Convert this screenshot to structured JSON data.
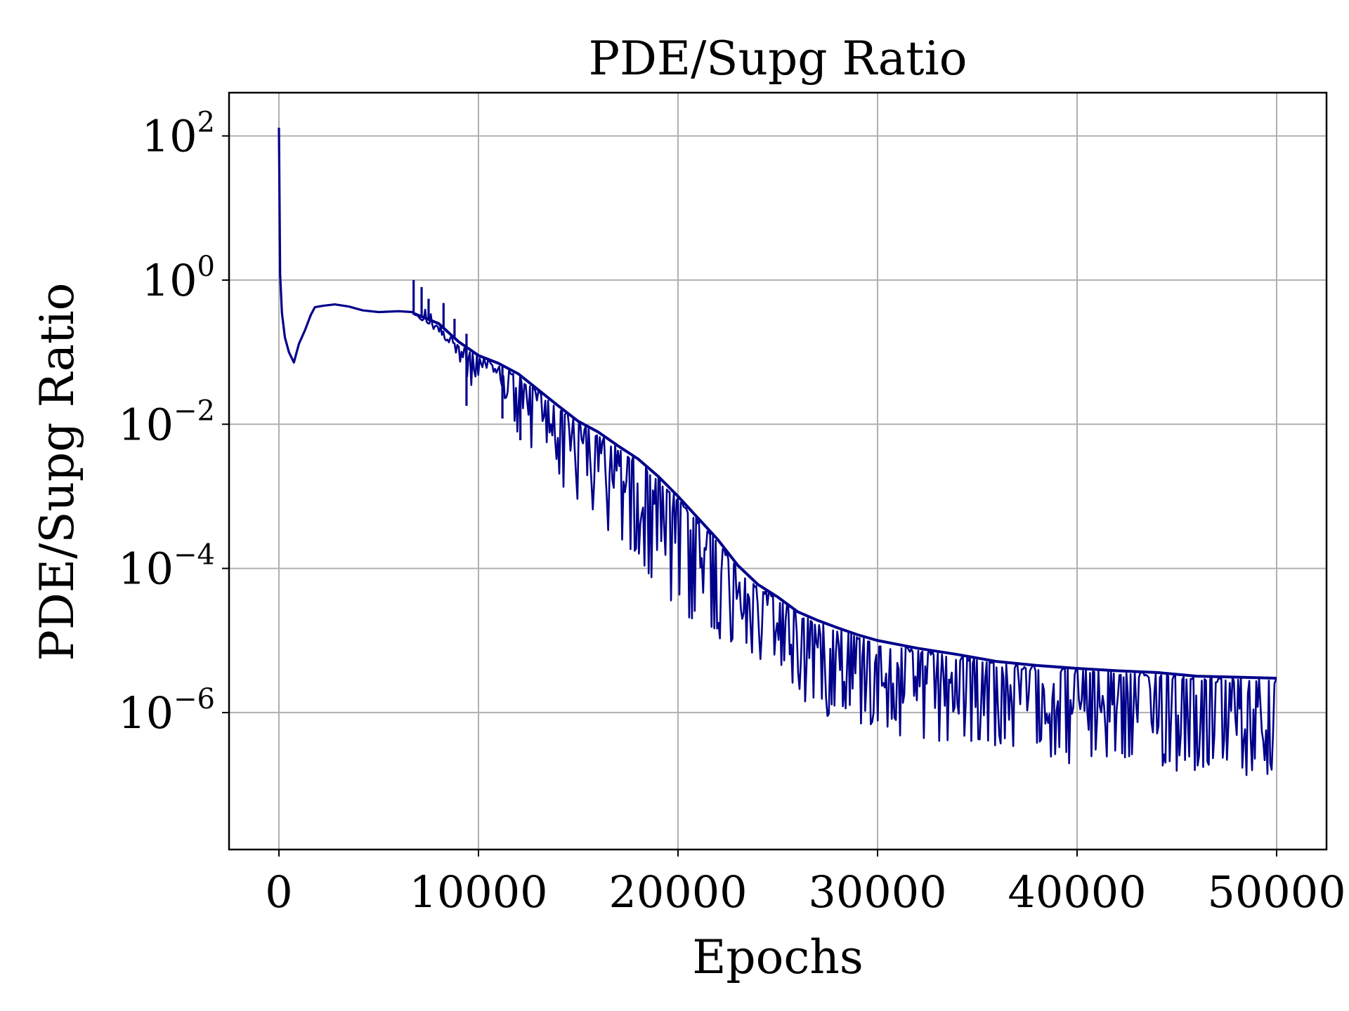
{
  "chart_data": {
    "type": "line",
    "title": "PDE/Supg Ratio",
    "xlabel": "Epochs",
    "ylabel": "PDE/Supg Ratio",
    "yscale": "log",
    "xlim": [
      -2500,
      52500
    ],
    "ylim_log10": [
      -7.9,
      2.6
    ],
    "grid": true,
    "line_color": "#00008b",
    "x_ticks": [
      {
        "value": 0,
        "label": "0"
      },
      {
        "value": 10000,
        "label": "10000"
      },
      {
        "value": 20000,
        "label": "20000"
      },
      {
        "value": 30000,
        "label": "30000"
      },
      {
        "value": 40000,
        "label": "40000"
      },
      {
        "value": 50000,
        "label": "50000"
      }
    ],
    "y_ticks": [
      {
        "value": 100,
        "base": "10",
        "exp": "2"
      },
      {
        "value": 1,
        "base": "10",
        "exp": "0"
      },
      {
        "value": 0.01,
        "base": "10",
        "exp": "−2"
      },
      {
        "value": 0.0001,
        "base": "10",
        "exp": "−4"
      },
      {
        "value": 1e-06,
        "base": "10",
        "exp": "−6"
      }
    ],
    "series": [
      {
        "name": "PDE/Supg Ratio",
        "smooth_points": [
          [
            0,
            130
          ],
          [
            60,
            1.2
          ],
          [
            150,
            0.35
          ],
          [
            300,
            0.16
          ],
          [
            500,
            0.1
          ],
          [
            750,
            0.072
          ],
          [
            1000,
            0.13
          ],
          [
            1300,
            0.2
          ],
          [
            1600,
            0.33
          ],
          [
            1800,
            0.42
          ],
          [
            2200,
            0.44
          ],
          [
            2800,
            0.46
          ],
          [
            3500,
            0.43
          ],
          [
            4200,
            0.38
          ],
          [
            5000,
            0.36
          ],
          [
            6000,
            0.37
          ],
          [
            6700,
            0.36
          ]
        ],
        "upper_envelope": [
          [
            6700,
            0.35
          ],
          [
            8000,
            0.25
          ],
          [
            9000,
            0.14
          ],
          [
            10000,
            0.09
          ],
          [
            11000,
            0.07
          ],
          [
            12000,
            0.05
          ],
          [
            13000,
            0.03
          ],
          [
            14000,
            0.018
          ],
          [
            15000,
            0.011
          ],
          [
            16000,
            0.0078
          ],
          [
            17000,
            0.005
          ],
          [
            18000,
            0.0033
          ],
          [
            19000,
            0.0019
          ],
          [
            20000,
            0.001
          ],
          [
            21000,
            0.0005
          ],
          [
            22000,
            0.00025
          ],
          [
            23000,
            0.00011
          ],
          [
            24000,
            6e-05
          ],
          [
            25000,
            4e-05
          ],
          [
            26000,
            2.5e-05
          ],
          [
            27000,
            1.9e-05
          ],
          [
            28000,
            1.5e-05
          ],
          [
            29000,
            1.2e-05
          ],
          [
            30000,
            1e-05
          ],
          [
            32000,
            7.8e-06
          ],
          [
            34000,
            6.4e-06
          ],
          [
            36000,
            5.1e-06
          ],
          [
            38000,
            4.5e-06
          ],
          [
            40000,
            4.1e-06
          ],
          [
            42000,
            3.8e-06
          ],
          [
            44000,
            3.6e-06
          ],
          [
            46000,
            3.2e-06
          ],
          [
            48000,
            3.1e-06
          ],
          [
            50000,
            3e-06
          ]
        ],
        "lower_envelope": [
          [
            6700,
            0.33
          ],
          [
            8000,
            0.16
          ],
          [
            9000,
            0.07
          ],
          [
            9400,
            0.018
          ],
          [
            10000,
            0.035
          ],
          [
            11000,
            0.015
          ],
          [
            12000,
            0.006
          ],
          [
            13000,
            0.003
          ],
          [
            14000,
            0.0018
          ],
          [
            15000,
            0.00055
          ],
          [
            16000,
            0.00035
          ],
          [
            17000,
            0.00018
          ],
          [
            18000,
            0.00011
          ],
          [
            19000,
            4e-05
          ],
          [
            20000,
            3e-05
          ],
          [
            21000,
            1.4e-05
          ],
          [
            22000,
            1e-05
          ],
          [
            23000,
            7.5e-06
          ],
          [
            24000,
            5.5e-06
          ],
          [
            25000,
            5e-06
          ],
          [
            26000,
            1.2e-06
          ],
          [
            28000,
            8e-07
          ],
          [
            30000,
            6e-07
          ],
          [
            32000,
            4e-07
          ],
          [
            34000,
            3.5e-07
          ],
          [
            36000,
            3e-07
          ],
          [
            38000,
            2.5e-07
          ],
          [
            40000,
            1.7e-07
          ],
          [
            42000,
            2e-07
          ],
          [
            44000,
            1.5e-07
          ],
          [
            46000,
            1.5e-07
          ],
          [
            48000,
            1.4e-07
          ],
          [
            50000,
            1.2e-07
          ]
        ],
        "spikes": [
          [
            6750,
            1.0
          ],
          [
            7150,
            0.8
          ],
          [
            7500,
            0.55
          ],
          [
            8250,
            0.48
          ],
          [
            8800,
            0.29
          ],
          [
            9400,
            0.18
          ],
          [
            12750,
            0.03
          ]
        ]
      }
    ]
  }
}
